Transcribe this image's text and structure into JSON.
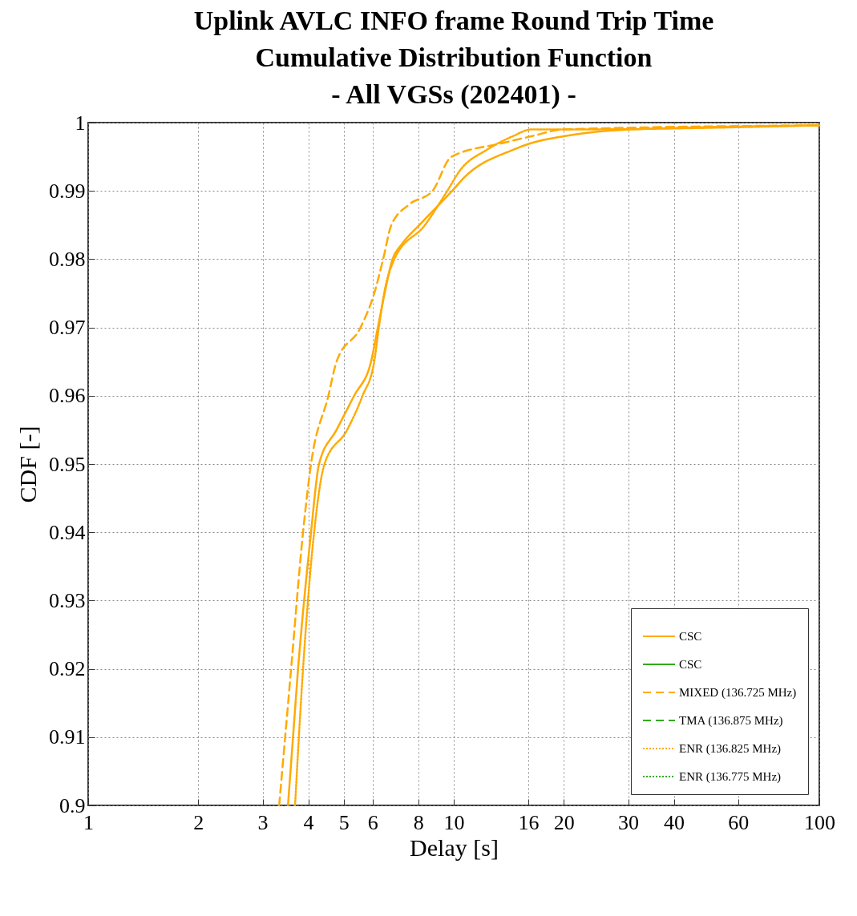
{
  "chart_data": {
    "type": "line",
    "title": [
      "Uplink AVLC INFO frame Round Trip Time",
      "Cumulative Distribution Function",
      "- All VGSs (202401) -"
    ],
    "xlabel": "Delay [s]",
    "ylabel": "CDF [-]",
    "log": "x",
    "xlim": [
      1,
      100
    ],
    "xticks": [
      1,
      2,
      3,
      4,
      5,
      6,
      8,
      10,
      16,
      20,
      30,
      40,
      60,
      100
    ],
    "ylim": [
      0.9,
      1
    ],
    "yticks": [
      0.9,
      0.91,
      0.92,
      0.93,
      0.94,
      0.95,
      0.96,
      0.97,
      0.98,
      0.99,
      1
    ],
    "grid": true,
    "legend": "bottom right",
    "marker": "none",
    "series": [
      {
        "name": "CSC",
        "color": "#ffaa00",
        "line_style": "solid",
        "x": [
          3.52,
          3.75,
          4.07,
          4.28,
          4.78,
          5.34,
          5.94,
          6.2,
          6.47,
          6.8,
          7.16,
          8.05,
          9.9,
          10.7,
          14.5,
          16.3,
          20,
          30.5,
          100
        ],
        "values": [
          0.9,
          0.92,
          0.94,
          0.95,
          0.955,
          0.96,
          0.965,
          0.97,
          0.975,
          0.98,
          0.982,
          0.985,
          0.99,
          0.992,
          0.996,
          0.997,
          0.998,
          0.999,
          0.9996
        ]
      },
      {
        "name": "CSC",
        "color": "#33aa00",
        "line_style": "solid"
      },
      {
        "name": "MIXED (136.725 MHz)",
        "color": "#ffaa00",
        "line_style": "dashed",
        "x": [
          3.33,
          3.59,
          3.87,
          4.07,
          4.54,
          4.78,
          5.56,
          6.06,
          6.41,
          6.75,
          7.55,
          8.75,
          9.85,
          13.6,
          16.3,
          20,
          100
        ],
        "values": [
          0.9,
          0.92,
          0.94,
          0.95,
          0.96,
          0.965,
          0.97,
          0.975,
          0.98,
          0.985,
          0.988,
          0.99,
          0.995,
          0.997,
          0.998,
          0.999,
          0.9996
        ]
      },
      {
        "name": "TMA (136.875 MHz)",
        "color": "#33aa00",
        "line_style": "dashed"
      },
      {
        "name": "ENR (136.825 MHz)",
        "color": "#ffaa00",
        "line_style": "dotted",
        "x": [
          3.68,
          3.87,
          4.15,
          4.43,
          5.11,
          5.63,
          6.06,
          6.24,
          6.45,
          6.88,
          8.34,
          9.6,
          10.4,
          12.3,
          14.5,
          16.3,
          20,
          100
        ],
        "values": [
          0.9,
          0.92,
          0.94,
          0.95,
          0.955,
          0.96,
          0.965,
          0.97,
          0.975,
          0.98,
          0.985,
          0.99,
          0.993,
          0.996,
          0.998,
          0.999,
          0.999,
          0.9996
        ]
      },
      {
        "name": "ENR (136.775 MHz)",
        "color": "#33aa00",
        "line_style": "dotted"
      }
    ]
  }
}
